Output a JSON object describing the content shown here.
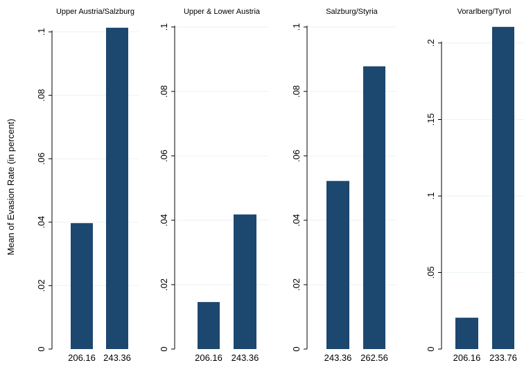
{
  "ylabel": "Mean of Evasion Rate (in percent)",
  "bar_color": "#1c476f",
  "chart_data": [
    {
      "type": "bar",
      "title": "Upper Austria/Salzburg",
      "categories": [
        "206.16",
        "243.36"
      ],
      "values": [
        0.0397,
        0.1013
      ],
      "ylim": [
        0,
        0.1
      ],
      "yticks": [
        0,
        0.02,
        0.04,
        0.06,
        0.08,
        0.1
      ],
      "ytick_labels": [
        "0",
        ".02",
        ".04",
        ".06",
        ".08",
        ".1"
      ]
    },
    {
      "type": "bar",
      "title": "Upper & Lower Austria",
      "categories": [
        "206.16",
        "243.36"
      ],
      "values": [
        0.0146,
        0.0418
      ],
      "ylim": [
        0,
        0.1
      ],
      "yticks": [
        0,
        0.02,
        0.04,
        0.06,
        0.08,
        0.1
      ],
      "ytick_labels": [
        "0",
        ".02",
        ".04",
        ".06",
        ".08",
        ".1"
      ]
    },
    {
      "type": "bar",
      "title": "Salzburg/Styria",
      "categories": [
        "243.36",
        "262.56"
      ],
      "values": [
        0.0522,
        0.0878
      ],
      "ylim": [
        0,
        0.1
      ],
      "yticks": [
        0,
        0.02,
        0.04,
        0.06,
        0.08,
        0.1
      ],
      "ytick_labels": [
        "0",
        ".02",
        ".04",
        ".06",
        ".08",
        ".1"
      ]
    },
    {
      "type": "bar",
      "title": "Vorarlberg/Tyrol",
      "categories": [
        "206.16",
        "233.76"
      ],
      "values": [
        0.0205,
        0.2105
      ],
      "ylim": [
        0,
        0.2
      ],
      "yticks": [
        0,
        0.05,
        0.1,
        0.15,
        0.2
      ],
      "ytick_labels": [
        "0",
        ".05",
        ".1",
        ".15",
        ".2"
      ]
    }
  ]
}
